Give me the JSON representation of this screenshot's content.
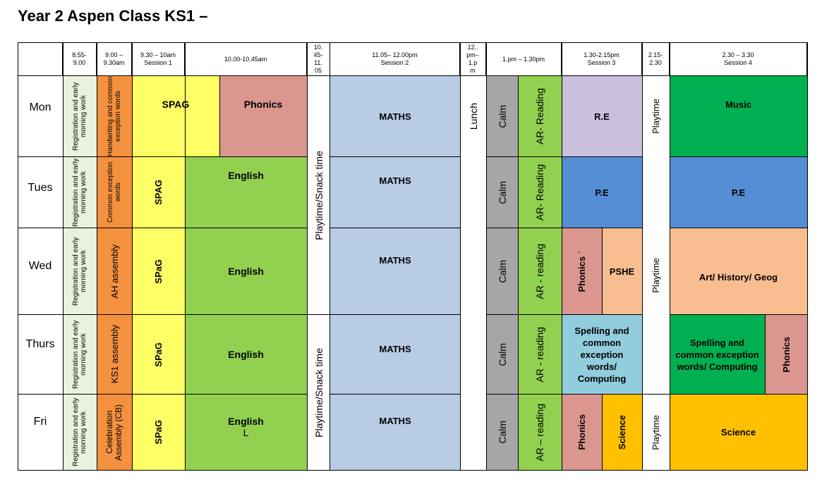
{
  "title": "Year 2 Aspen Class KS1 –",
  "header": {
    "c1": "8.55-\n9.00",
    "c2": "9.00 –\n9.30am",
    "c3": "9.30 – 10am\nSession 1",
    "c4": "10.00-10.45am",
    "c5": "10.\n45-\n11.\n05",
    "c6": "11.05– 12.00pm\nSession 2",
    "c7": "12..\npm–\n1.p\nm",
    "c8": "1.pm – 1.30pm",
    "c9": "1.30-2.15pm\nSession 3",
    "c10": "2.15-\n2.30",
    "c11": "2.30 – 3.30\nSession 4"
  },
  "days": {
    "mon": "Mon",
    "tue": "Tues",
    "wed": "Wed",
    "thu": "Thurs",
    "fri": "Fri"
  },
  "cells": {
    "mon_reg": "Registration and early morning work",
    "mon_hw": "Handwriting and common exception words",
    "mon_spag": "SPAG",
    "mon_phonics": "Phonics",
    "mon_maths": "MATHS",
    "mon_music": "Music",
    "mon_re": "R.E",
    "tue_reg": "Registration and early morning work",
    "tue_cew": "Common exception words",
    "tue_spag": "SPAG",
    "tue_english": "English",
    "tue_maths": "MATHS",
    "tue_pe1": "P.E",
    "tue_pe2": "P.E",
    "wed_reg": "Registration and early morning work",
    "wed_assembly": "AH assembly",
    "wed_spag": "SPaG",
    "wed_english": "English",
    "wed_maths": "MATHS",
    "wed_phonics": "Phonics ˈ",
    "wed_pshe": "PSHE",
    "wed_art": "Art/ History/ Geog",
    "thu_reg": "Registration and early morning work",
    "thu_assembly": "KS1 assembly",
    "thu_spag": "SPaG",
    "thu_english": "English",
    "thu_maths": "MATHS",
    "thu_spell1": "Spelling and common exception words/ Computing",
    "thu_spell2": "Spelling and common exception words/ Computing",
    "thu_phonics": "Phonics",
    "fri_reg": "Registration and early morning work",
    "fri_assembly": "Celebration Assembly (CB)",
    "fri_spag": "SPaG",
    "fri_english": "English",
    "fri_english_extra": "L",
    "fri_maths": "MATHS",
    "fri_phonics": "Phonics",
    "fri_science1": "Science",
    "fri_science2": "Science",
    "snack1": "Playtime/Snack time",
    "snack2": "Playtime/Snack time",
    "lunch": "Lunch",
    "calm": "Calm",
    "ar_mon": "AR- Reading",
    "ar_tue": "AR- Reading",
    "ar_wed": "AR - reading",
    "ar_thu": "AR - reading",
    "ar_fri": "AR – reading",
    "play_mon": "Playtime",
    "play_wed": "Playtime",
    "play_fri": "Playtime"
  },
  "colors": {
    "registration": "#eaf2df",
    "orange": "#f4913e",
    "yellow": "#ffff66",
    "light_green": "#92d050",
    "pink": "#da968f",
    "light_blue": "#b8cce4",
    "lavender": "#cbbfde",
    "blue": "#558ed5",
    "peach": "#f9be8f",
    "teal": "#92cddd",
    "green": "#00b050",
    "gold": "#ffc000",
    "gray": "#a6a6a6"
  }
}
